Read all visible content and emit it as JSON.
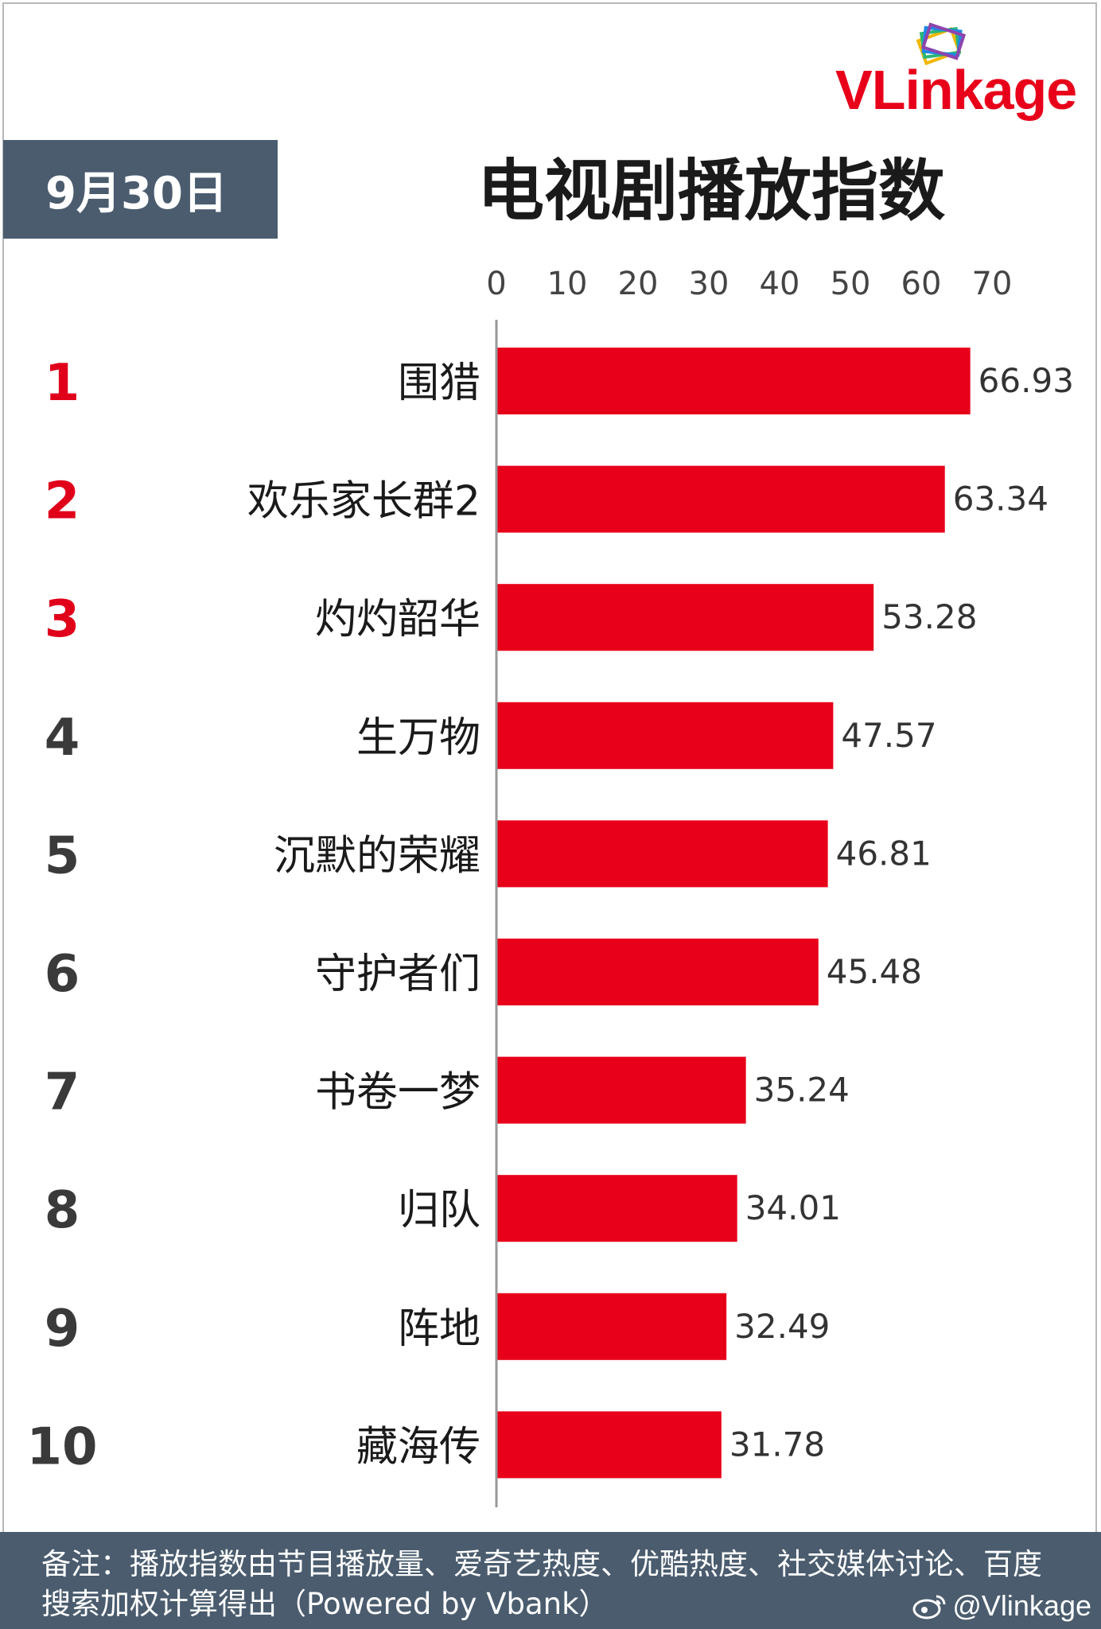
{
  "header": {
    "date": "9月30日",
    "title": "电视剧播放指数",
    "logo_text": "VLinkage"
  },
  "colors": {
    "bar": "#e8001a",
    "rank_top3": "#e0001a",
    "rank_other": "#3a3a3a",
    "header_box": "#4a5c6e"
  },
  "chart_data": {
    "type": "bar",
    "orientation": "horizontal",
    "title": "电视剧播放指数",
    "xlim": [
      0,
      70
    ],
    "xticks": [
      0,
      10,
      20,
      30,
      40,
      50,
      60,
      70
    ],
    "xticks_position": "top",
    "ranks": [
      "1",
      "2",
      "3",
      "4",
      "5",
      "6",
      "7",
      "8",
      "9",
      "10"
    ],
    "categories": [
      "围猎",
      "欢乐家长群2",
      "灼灼韶华",
      "生万物",
      "沉默的荣耀",
      "守护者们",
      "书卷一梦",
      "归队",
      "阵地",
      "藏海传"
    ],
    "values": [
      66.93,
      63.34,
      53.28,
      47.57,
      46.81,
      45.48,
      35.24,
      34.01,
      32.49,
      31.78
    ],
    "value_labels": [
      "66.93",
      "63.34",
      "53.28",
      "47.57",
      "46.81",
      "45.48",
      "35.24",
      "34.01",
      "32.49",
      "31.78"
    ],
    "grid": false,
    "legend": "none"
  },
  "footer": {
    "note": "备注：播放指数由节目播放量、爱奇艺热度、优酷热度、社交媒体讨论、百度搜索加权计算得出（Powered by Vbank）",
    "handle": "@Vlinkage"
  }
}
